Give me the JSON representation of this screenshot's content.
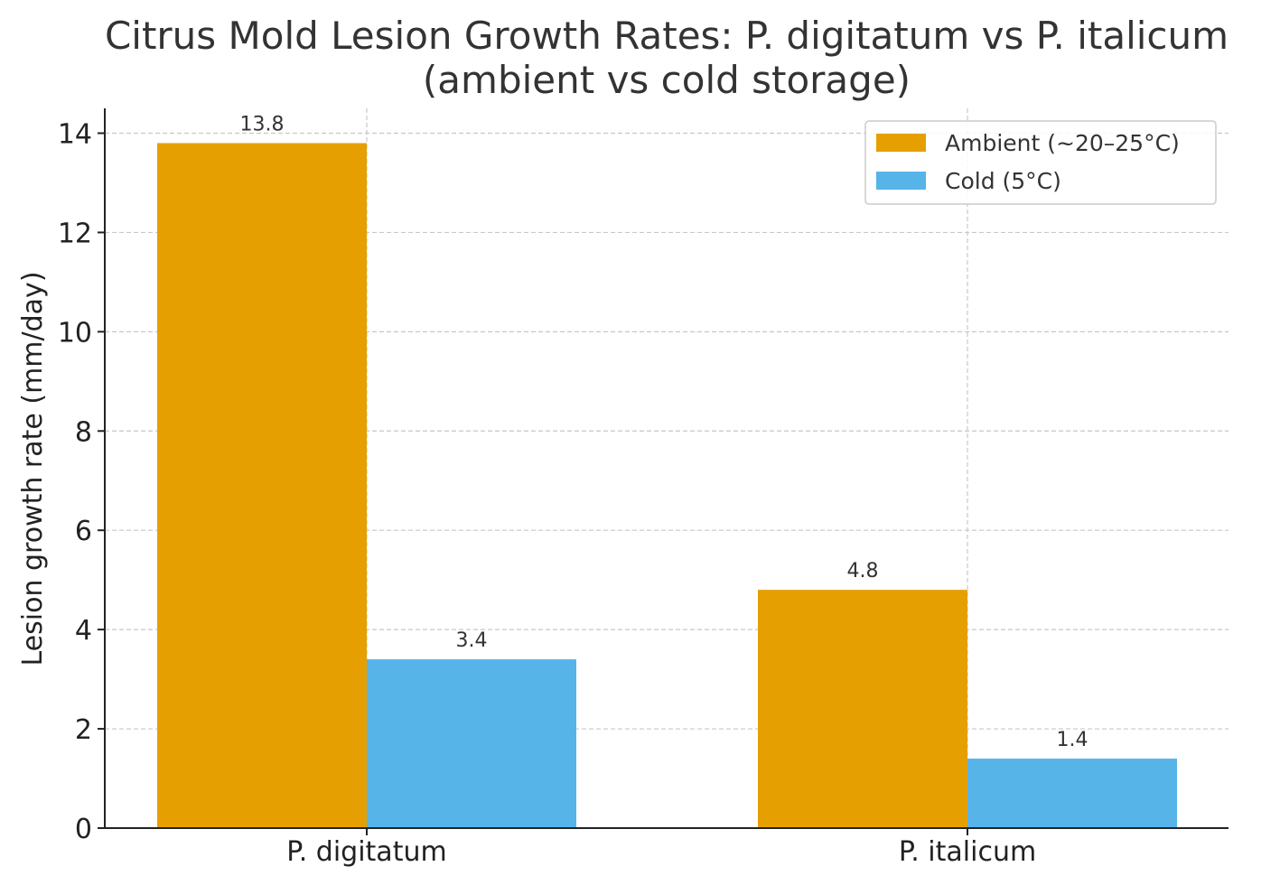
{
  "chart_data": {
    "type": "bar",
    "title": "Citrus Mold Lesion Growth Rates: P. digitatum vs P. italicum",
    "subtitle": "(ambient vs cold storage)",
    "xlabel": "",
    "ylabel": "Lesion growth rate (mm/day)",
    "categories": [
      "P. digitatum",
      "P. italicum"
    ],
    "series": [
      {
        "name": "Ambient (~20–25°C)",
        "values": [
          13.8,
          4.8
        ],
        "labels": [
          "13.8",
          "4.8"
        ],
        "color": "#E69F00"
      },
      {
        "name": "Cold (5°C)",
        "values": [
          3.4,
          1.4
        ],
        "labels": [
          "3.4",
          "1.4"
        ],
        "color": "#56B4E9"
      }
    ],
    "ylim": [
      0,
      14.5
    ],
    "yticks": [
      0,
      2,
      4,
      6,
      8,
      10,
      12,
      14
    ],
    "grid": true,
    "legend_position": "top-right"
  }
}
